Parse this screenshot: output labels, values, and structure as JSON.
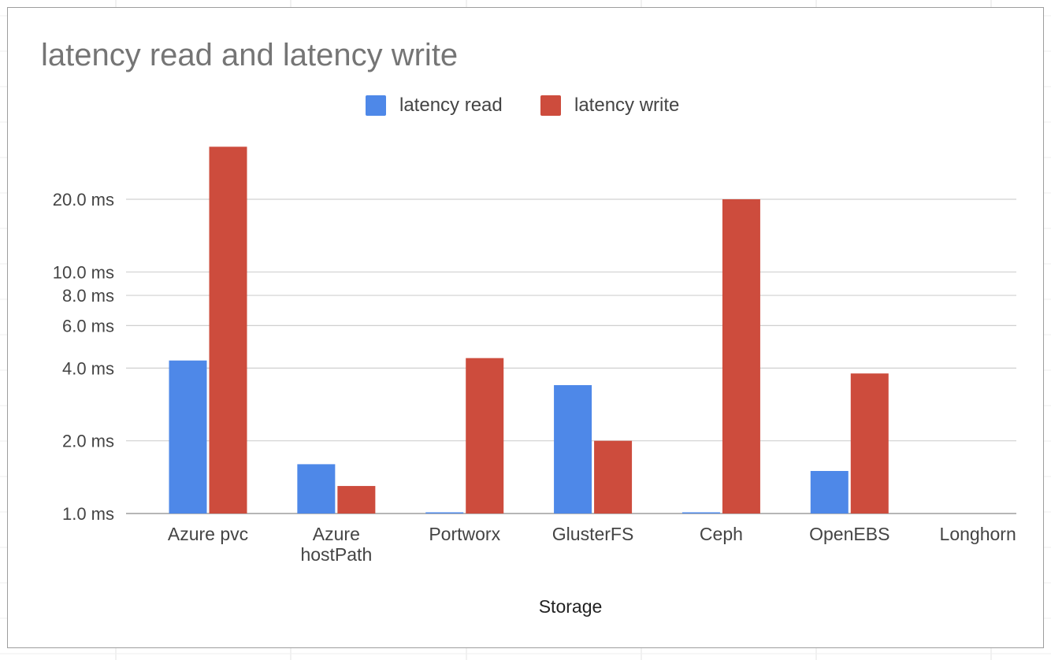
{
  "chart_data": {
    "type": "bar",
    "title": "latency read and latency write",
    "xlabel": "Storage",
    "ylabel": "",
    "y_scale": "log",
    "ylim": [
      1.0,
      40.0
    ],
    "grid": true,
    "legend_position": "top-center",
    "categories": [
      [
        "Azure pvc"
      ],
      [
        "Azure",
        "hostPath"
      ],
      [
        "Portworx"
      ],
      [
        "GlusterFS"
      ],
      [
        "Ceph"
      ],
      [
        "OpenEBS"
      ],
      [
        "Longhorn"
      ]
    ],
    "y_ticks": [
      {
        "value": 1.0,
        "label": "1.0 ms"
      },
      {
        "value": 2.0,
        "label": "2.0 ms"
      },
      {
        "value": 4.0,
        "label": "4.0 ms"
      },
      {
        "value": 6.0,
        "label": "6.0 ms"
      },
      {
        "value": 8.0,
        "label": "8.0 ms"
      },
      {
        "value": 10.0,
        "label": "10.0 ms"
      },
      {
        "value": 20.0,
        "label": "20.0 ms"
      }
    ],
    "series": [
      {
        "name": "latency read",
        "color": "#4e88e8",
        "values": [
          4.3,
          1.6,
          1.0,
          3.4,
          1.0,
          1.5,
          null
        ]
      },
      {
        "name": "latency write",
        "color": "#cd4c3d",
        "values": [
          33.0,
          1.3,
          4.4,
          2.0,
          20.0,
          3.8,
          null
        ]
      }
    ]
  }
}
